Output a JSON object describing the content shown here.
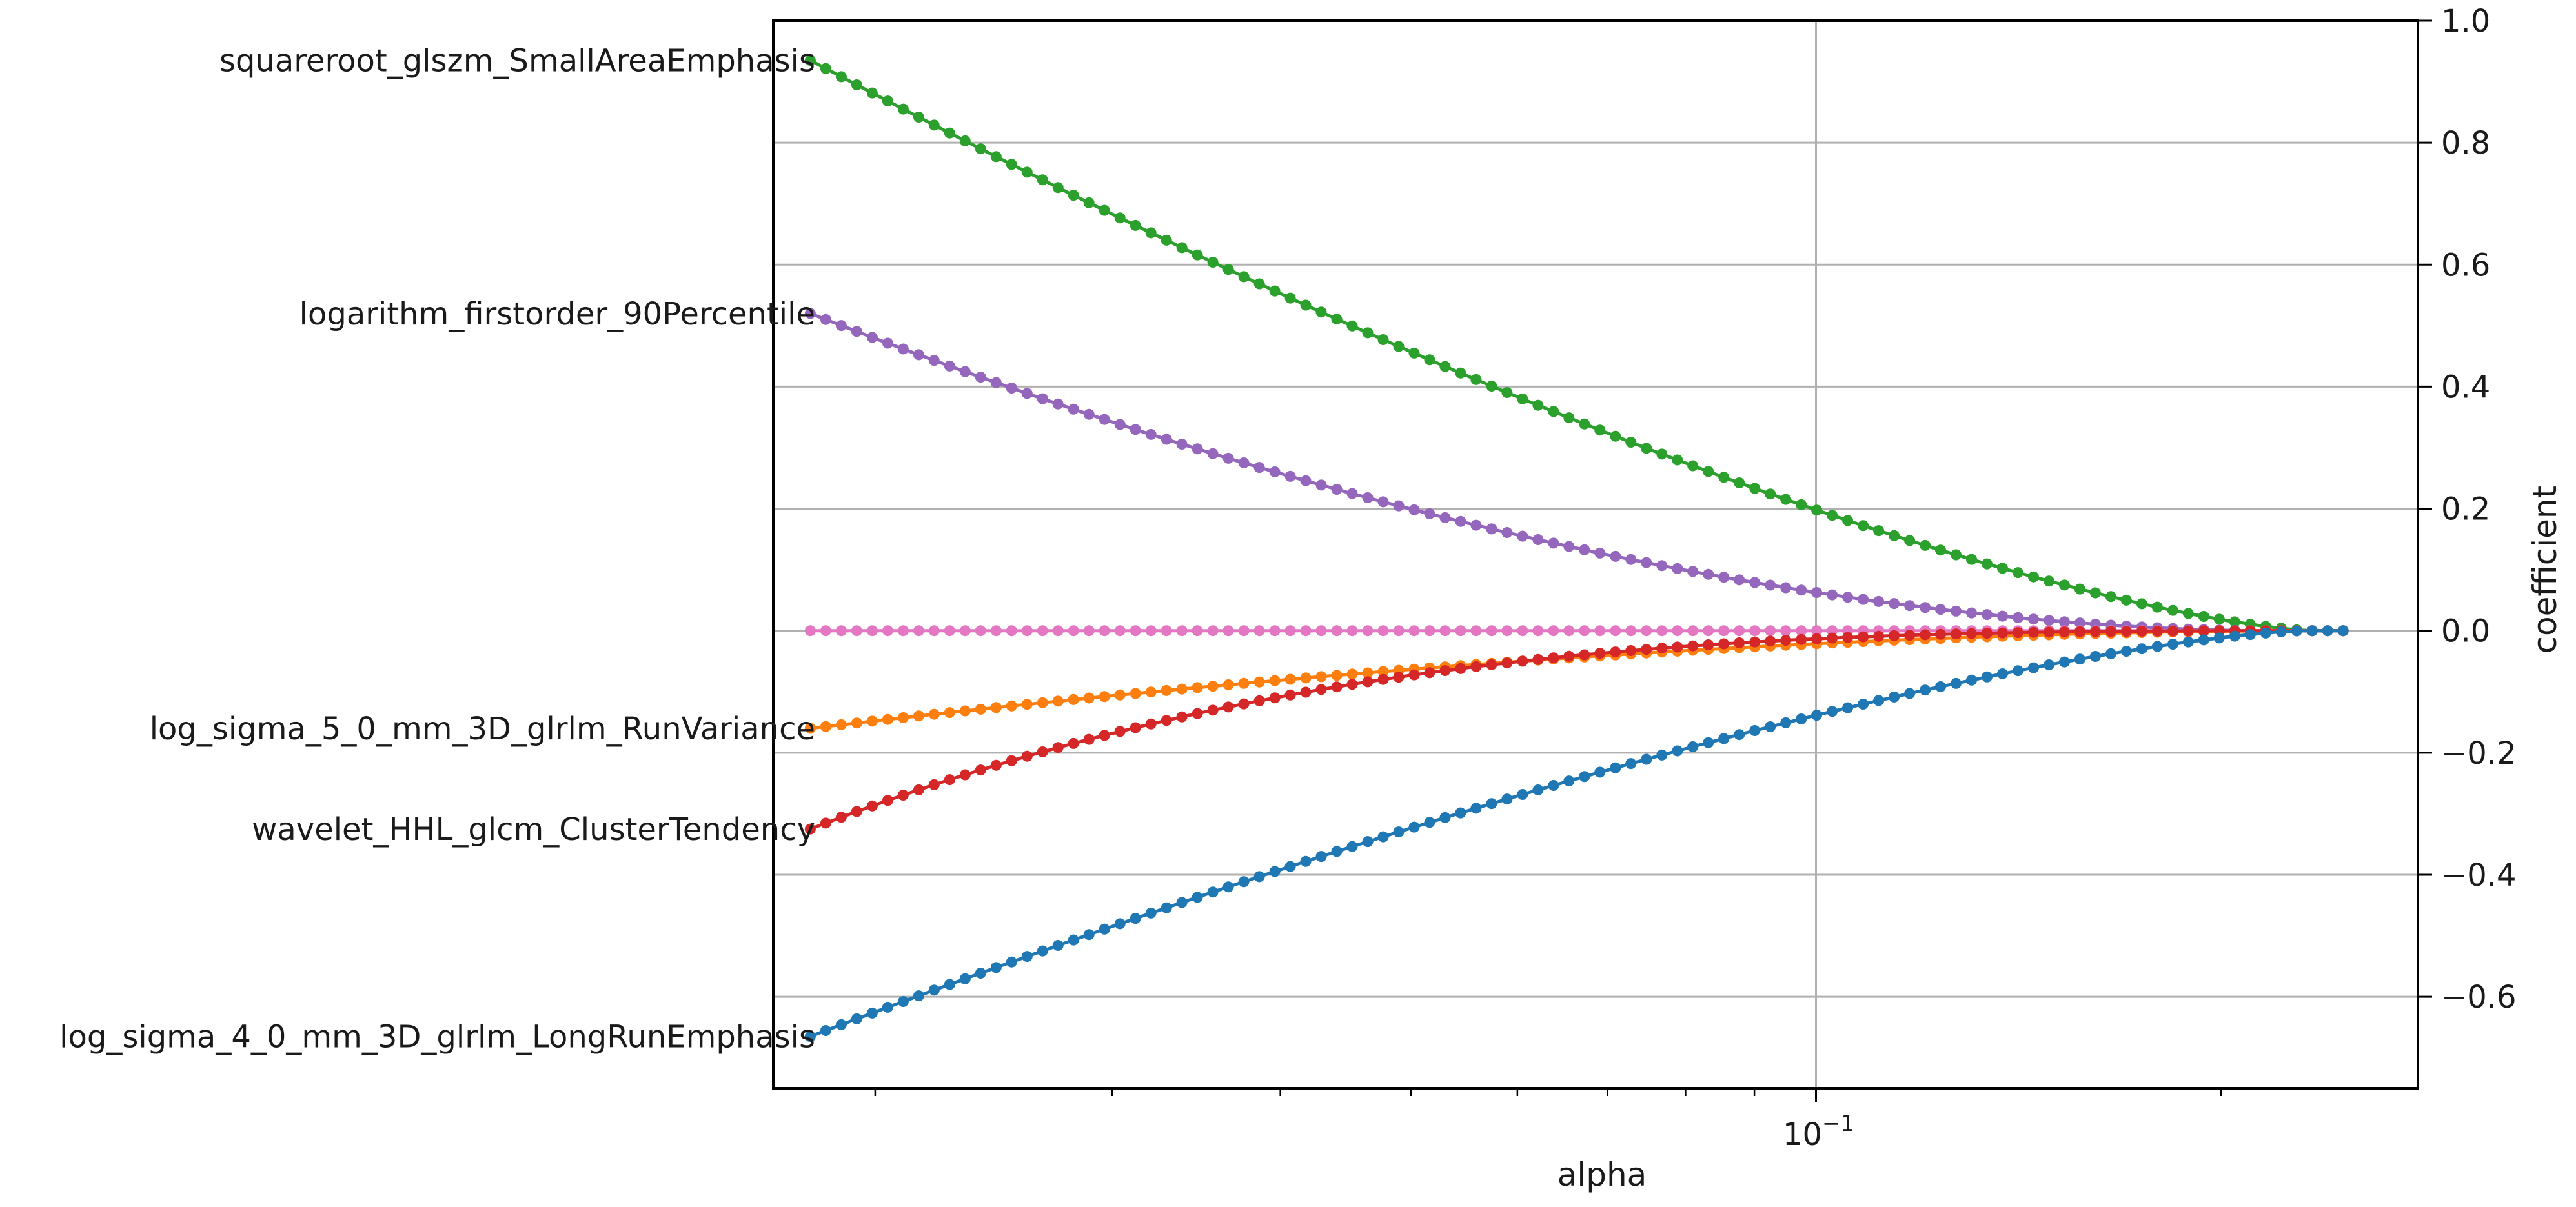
{
  "chart_data": {
    "type": "line",
    "x_scale": "log",
    "xlabel": "alpha",
    "ylabel": "coefficient",
    "xlim": [
      0.0168,
      0.28
    ],
    "ylim": [
      -0.75,
      1.0
    ],
    "x_ticks": [
      {
        "value": 0.1,
        "label_base": "10",
        "label_exp": "−1"
      }
    ],
    "y_ticks": [
      {
        "value": 1.0,
        "label": "1.0"
      },
      {
        "value": 0.8,
        "label": "0.8"
      },
      {
        "value": 0.6,
        "label": "0.6"
      },
      {
        "value": 0.4,
        "label": "0.4"
      },
      {
        "value": 0.2,
        "label": "0.2"
      },
      {
        "value": 0.0,
        "label": "0.0"
      },
      {
        "value": -0.2,
        "label": "−0.2"
      },
      {
        "value": -0.4,
        "label": "−0.4"
      },
      {
        "value": -0.6,
        "label": "−0.6"
      }
    ],
    "grid": true,
    "y_axis_side": "right",
    "alpha_range": [
      0.0179,
      0.2464
    ],
    "points_per_series": 100,
    "series": [
      {
        "name": "squareroot_glszm_SmallAreaEmphasis",
        "color": "#2ca02c",
        "alpha_zero": 0.2335,
        "coef_at_start": 0.935,
        "shape": 1.4
      },
      {
        "name": "logarithm_firstorder_90Percentile",
        "color": "#9467bd",
        "alpha_zero": 0.2158,
        "coef_at_start": 0.52,
        "shape": 1.8
      },
      {
        "name": "",
        "color": "#e377c2",
        "alpha_zero": 0.2464,
        "coef_at_start": 0.0,
        "shape": 1.0
      },
      {
        "name": "log_sigma_5_0_mm_3D_glrlm_RunVariance",
        "color": "#ff7f0e",
        "alpha_zero": 0.2302,
        "coef_at_start": -0.16,
        "shape": 1.8
      },
      {
        "name": "wavelet_HHL_glcm_ClusterTendency",
        "color": "#d62728",
        "alpha_zero": 0.2464,
        "coef_at_start": -0.325,
        "shape": 3.0
      },
      {
        "name": "log_sigma_4_0_mm_3D_glrlm_LongRunEmphasis",
        "color": "#1f77b4",
        "alpha_zero": 0.2302,
        "coef_at_start": -0.665,
        "shape": 1.4
      }
    ]
  }
}
